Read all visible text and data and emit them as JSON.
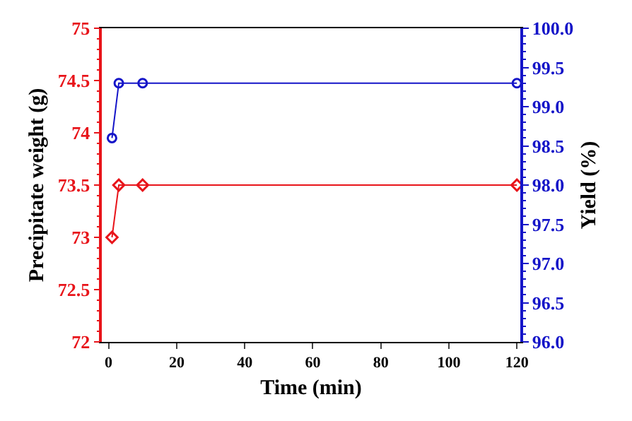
{
  "chart_data": {
    "type": "line",
    "xlabel": "Time (min)",
    "ylabel": "Precipitate weight (g)",
    "y2label": "Yield (%)",
    "x": [
      1,
      3,
      10,
      120
    ],
    "series": [
      {
        "color": "#e8141a",
        "values": [
          73,
          73.5,
          73.5,
          73.5
        ],
        "marker": "diamond"
      },
      {
        "color": "#1414c8",
        "values": [
          98.6,
          99.3,
          99.3,
          99.3
        ],
        "marker": "circle",
        "axis": "y2"
      }
    ],
    "xlim": [
      -2,
      121
    ],
    "xticks": [
      0,
      20,
      40,
      60,
      80,
      100,
      120
    ],
    "ylim": [
      72,
      75
    ],
    "yticks": [
      72,
      {
        "value": 72.5,
        "label": "72.5"
      },
      73,
      {
        "value": 73.5,
        "label": "73.5"
      },
      74,
      {
        "value": 74.5,
        "label": "74.5"
      },
      75
    ],
    "y2lim": [
      96,
      100
    ],
    "y2ticks": [
      {
        "value": 96,
        "label": "96.0"
      },
      {
        "value": 96.5,
        "label": "96.5"
      },
      {
        "value": 97,
        "label": "97.0"
      },
      {
        "value": 97.5,
        "label": "97.5"
      },
      {
        "value": 98,
        "label": "98.0"
      },
      {
        "value": 98.5,
        "label": "98.5"
      },
      {
        "value": 99,
        "label": "99.0"
      },
      {
        "value": 99.5,
        "label": "99.5"
      },
      {
        "value": 100,
        "label": "100.0"
      }
    ],
    "grid": false,
    "line_style": "solid"
  }
}
